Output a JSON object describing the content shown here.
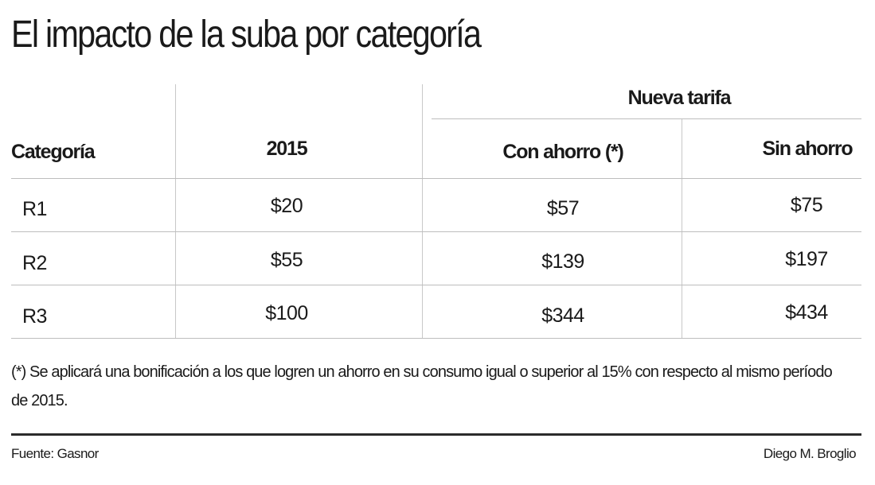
{
  "title": "El impacto de la suba por categoría",
  "chart_data": {
    "type": "table",
    "group_header": "Nueva tarifa",
    "columns": [
      "Categoría",
      "2015",
      "Con ahorro (*)",
      "Sin ahorro"
    ],
    "rows": [
      [
        "R1",
        "$20",
        "$57",
        "$75"
      ],
      [
        "R2",
        "$55",
        "$139",
        "$197"
      ],
      [
        "R3",
        "$100",
        "$344",
        "$434"
      ]
    ]
  },
  "footnote": "(*) Se aplicará una bonificación a los que logren un ahorro en su consumo igual o superior al 15% con respecto al mismo período de 2015.",
  "source": "Fuente: Gasnor",
  "author": "Diego M. Broglio"
}
